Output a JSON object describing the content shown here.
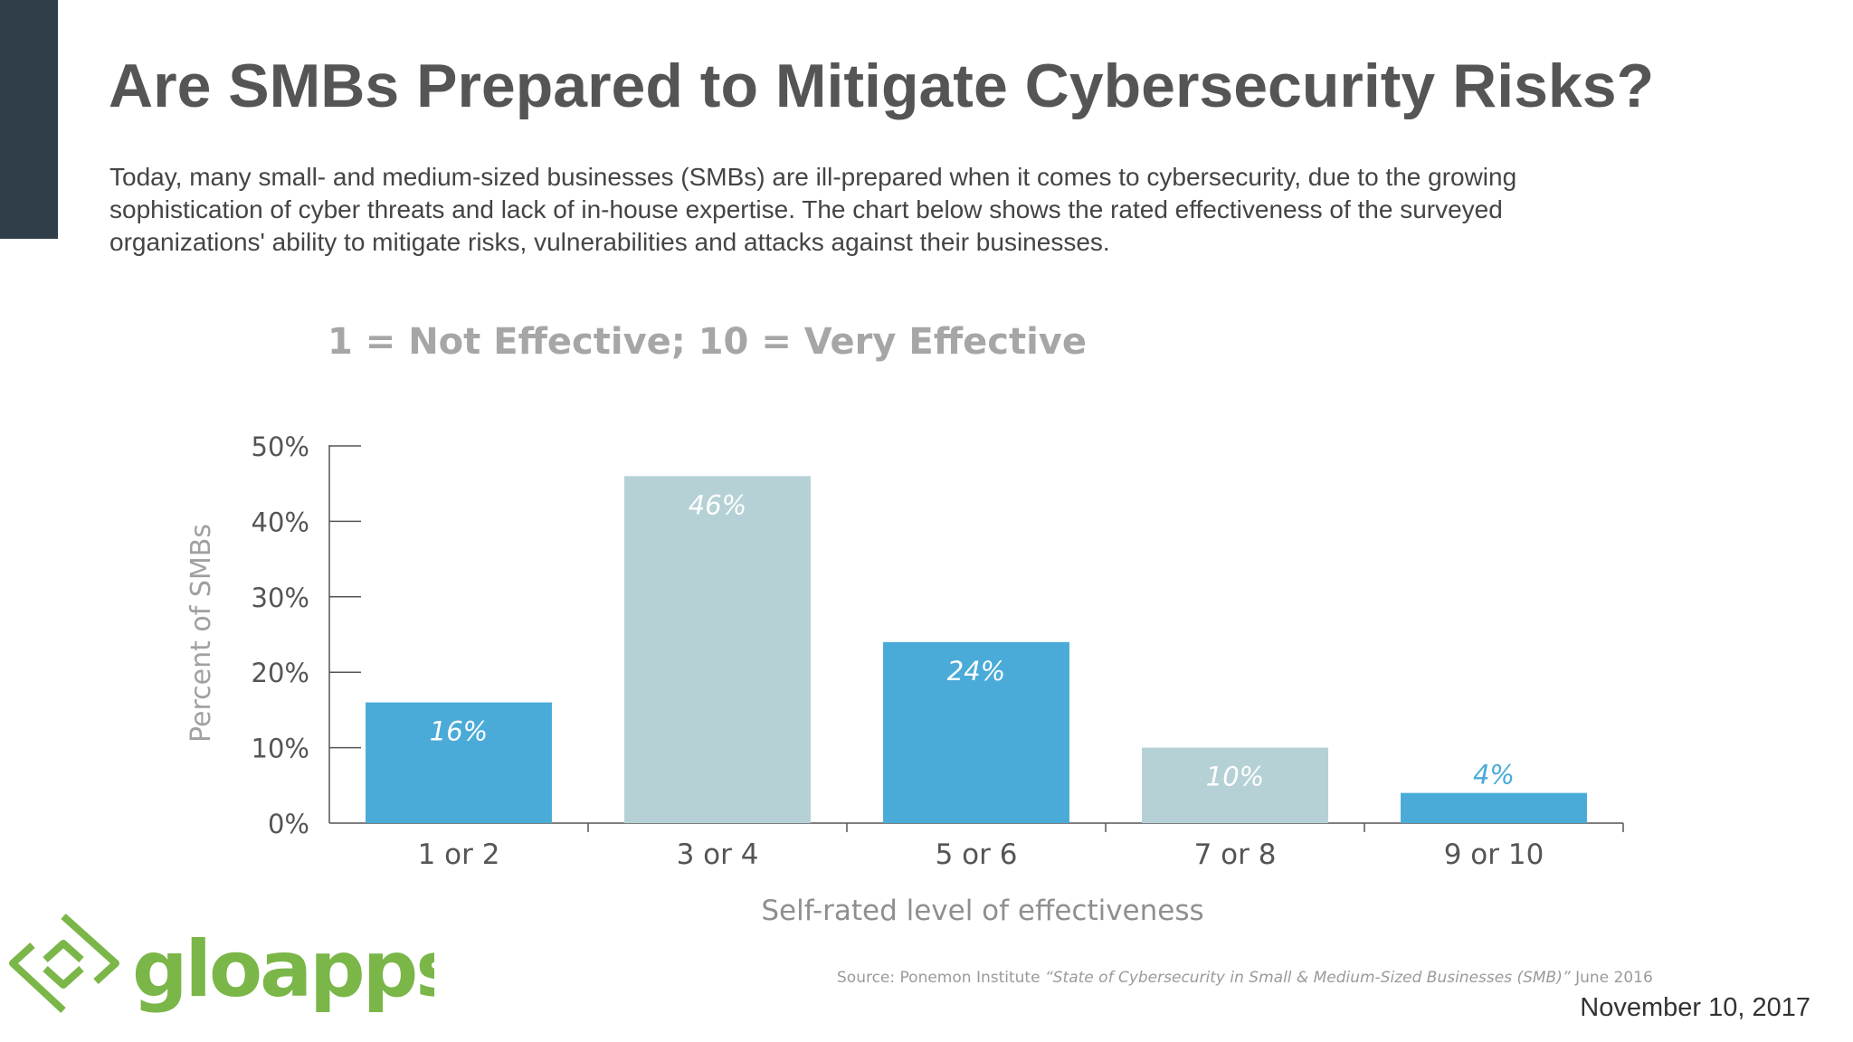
{
  "slide": {
    "title": "Are SMBs Prepared to Mitigate Cybersecurity Risks?",
    "intro": "Today, many small- and medium-sized businesses (SMBs) are ill-prepared when it comes to cybersecurity, due to the growing sophistication of cyber threats and lack of in-house expertise. The chart below shows the rated effectiveness of the surveyed organizations' ability to mitigate risks, vulnerabilities and attacks against their businesses.",
    "date": "November 10, 2017"
  },
  "logo": {
    "text": "gloapps",
    "icon": "gloapps-diamond-logo-icon",
    "color": "#7ab648"
  },
  "chart_data": {
    "type": "bar",
    "subtitle": "1 = Not Effective; 10 = Very Effective",
    "categories": [
      "1 or 2",
      "3 or 4",
      "5 or 6",
      "7 or 8",
      "9 or 10"
    ],
    "values": [
      16,
      46,
      24,
      10,
      4
    ],
    "data_labels": [
      "16%",
      "46%",
      "24%",
      "10%",
      "4%"
    ],
    "bar_colors": [
      "#4aabd8",
      "#b5d1d6",
      "#4aabd8",
      "#b5d1d6",
      "#4aabd8"
    ],
    "ylim": [
      0,
      50
    ],
    "yticks": [
      0,
      10,
      20,
      30,
      40,
      50
    ],
    "ytick_labels": [
      "0%",
      "10%",
      "20%",
      "30%",
      "40%",
      "50%"
    ],
    "ylabel": "Percent of SMBs",
    "xlabel": "Self-rated level of effectiveness",
    "grid": false,
    "source_prefix": "Source: Ponemon Institute",
    "source_title": "“State of Cybersecurity in Small & Medium-Sized Businesses (SMB)”",
    "source_date": "June 2016"
  }
}
